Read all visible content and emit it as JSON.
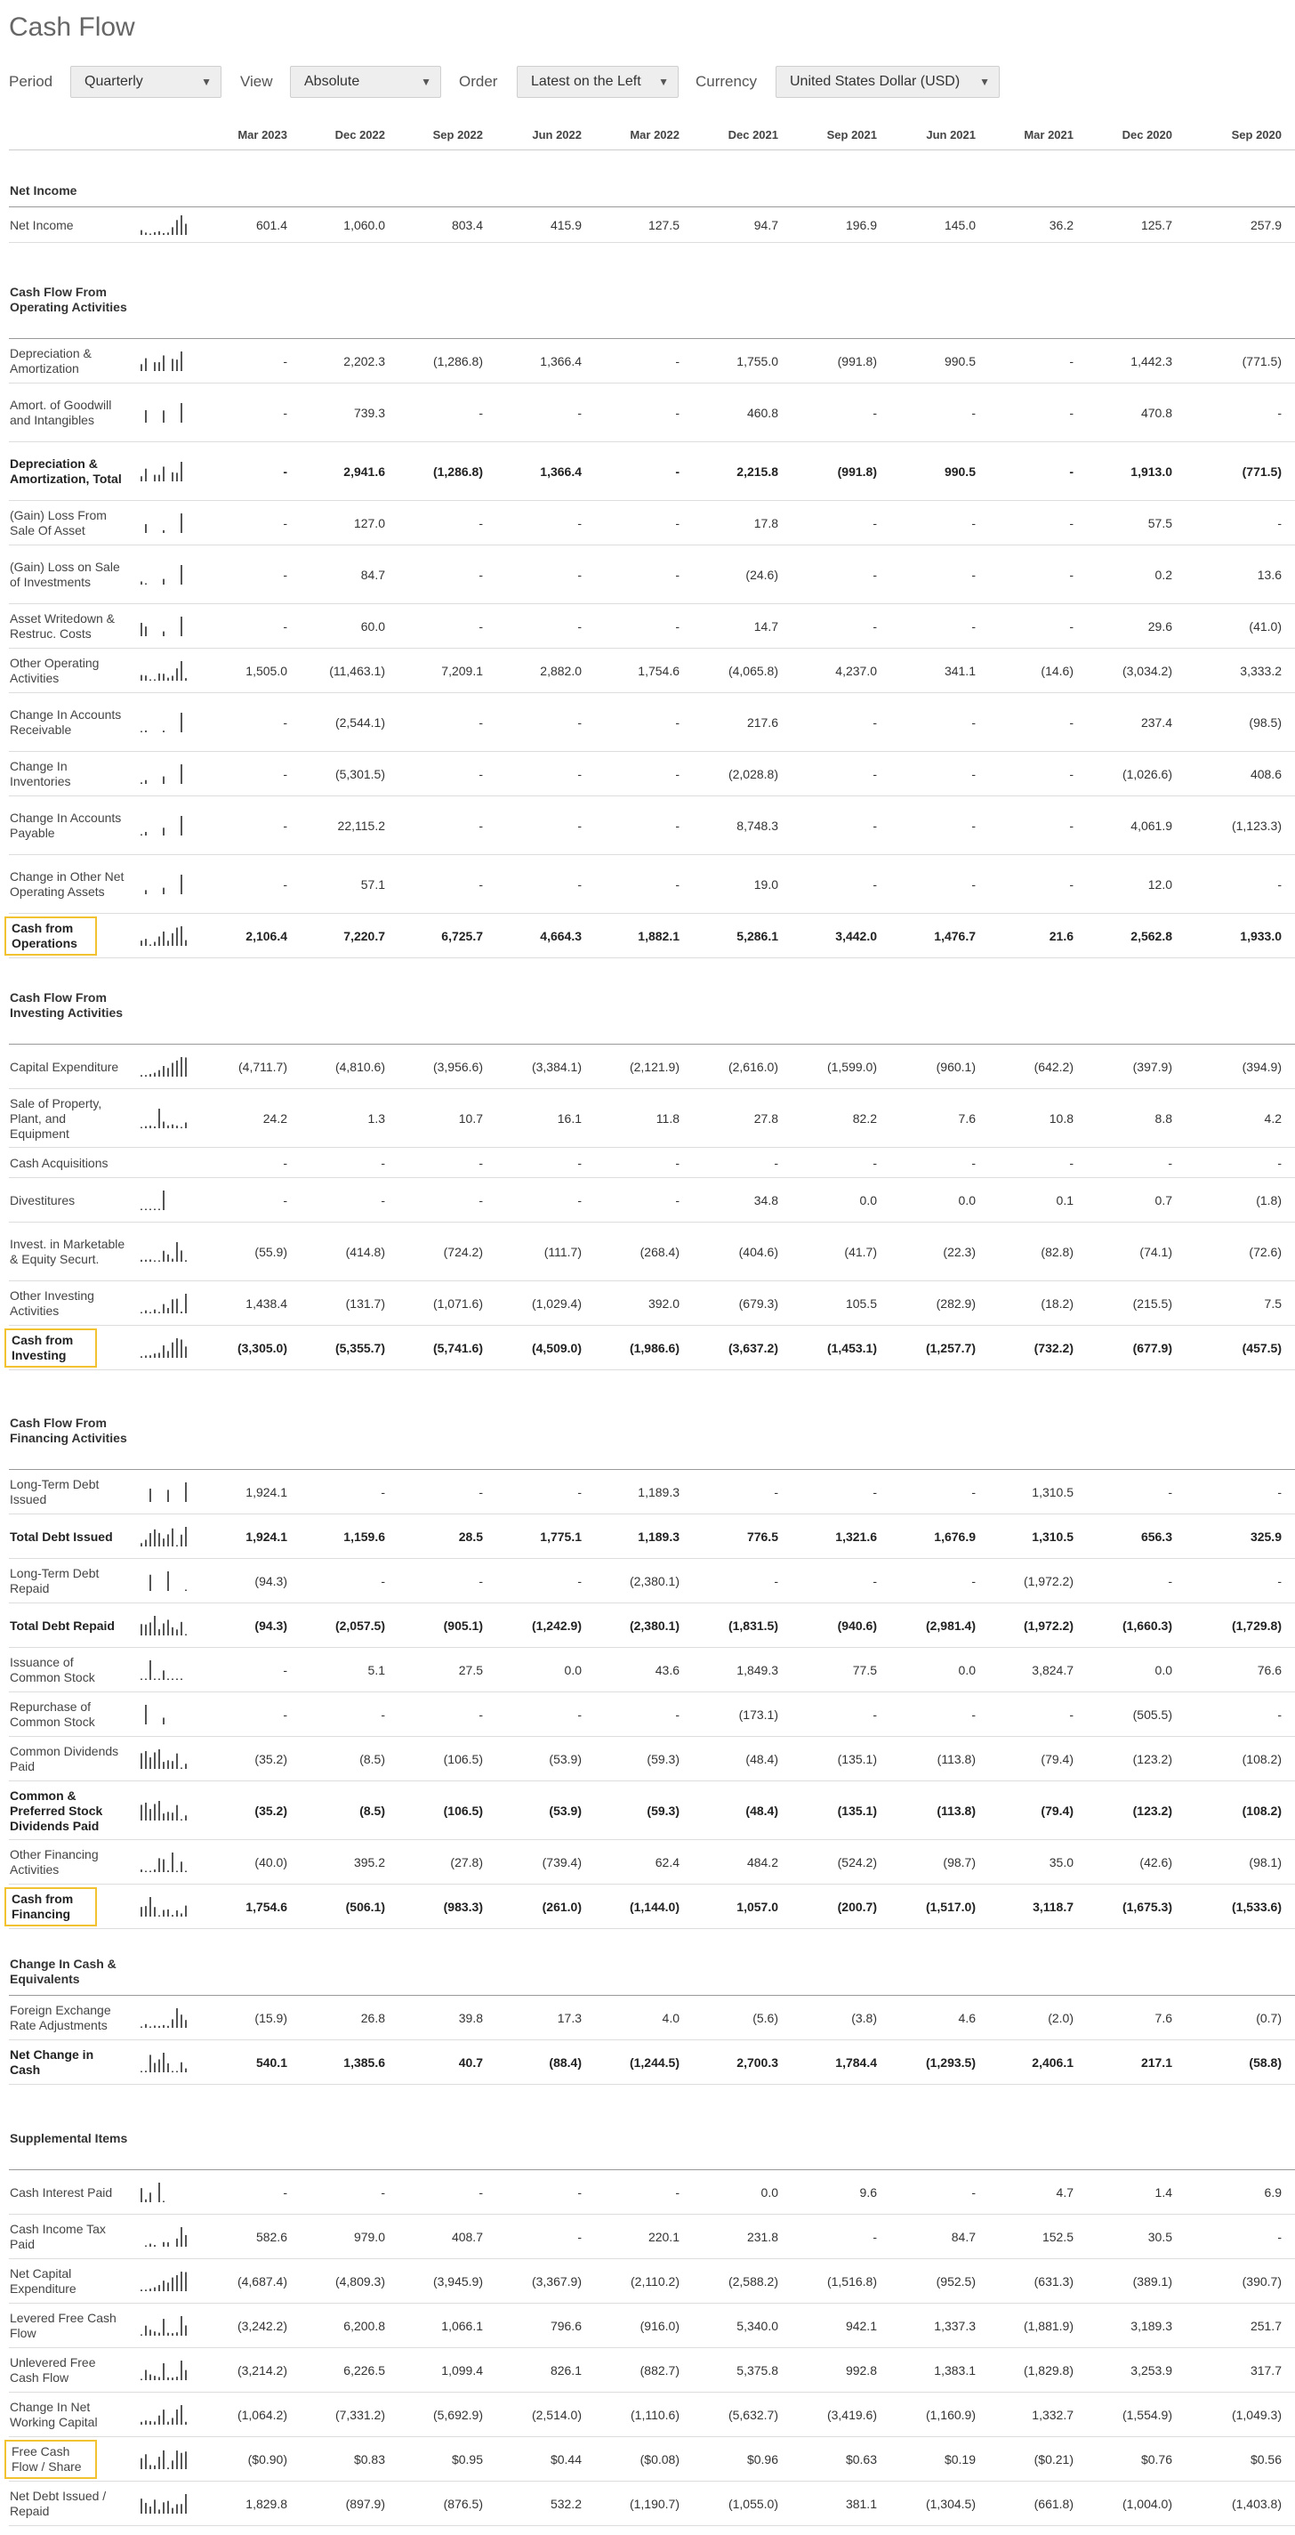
{
  "page": {
    "title": "Cash Flow"
  },
  "controls": {
    "period_label": "Period",
    "period_value": "Quarterly",
    "view_label": "View",
    "view_value": "Absolute",
    "order_label": "Order",
    "order_value": "Latest on the Left",
    "currency_label": "Currency",
    "currency_value": "United States Dollar (USD)"
  },
  "columns": [
    "Mar 2023",
    "Dec 2022",
    "Sep 2022",
    "Jun 2022",
    "Mar 2022",
    "Dec 2021",
    "Sep 2021",
    "Jun 2021",
    "Mar 2021",
    "Dec 2020",
    "Sep 2020"
  ],
  "colors": {
    "highlight_border": "#f2c230",
    "text": "#333333",
    "rule": "#dddddd"
  },
  "sections": [
    {
      "title": "Net Income",
      "rows": [
        {
          "label": "Net Income",
          "bold": false,
          "boxed": false,
          "values": [
            "601.4",
            "1,060.0",
            "803.4",
            "415.9",
            "127.5",
            "94.7",
            "196.9",
            "145.0",
            "36.2",
            "125.7",
            "257.9"
          ]
        }
      ]
    },
    {
      "title": "Cash Flow From Operating Activities",
      "rows": [
        {
          "label": "Depreciation & Amortization",
          "values": [
            "-",
            "2,202.3",
            "(1,286.8)",
            "1,366.4",
            "-",
            "1,755.0",
            "(991.8)",
            "990.5",
            "-",
            "1,442.3",
            "(771.5)"
          ]
        },
        {
          "label": "Amort. of Goodwill and Intangibles",
          "values": [
            "-",
            "739.3",
            "-",
            "-",
            "-",
            "460.8",
            "-",
            "-",
            "-",
            "470.8",
            "-"
          ]
        },
        {
          "label": "Depreciation & Amortization, Total",
          "bold": true,
          "values": [
            "-",
            "2,941.6",
            "(1,286.8)",
            "1,366.4",
            "-",
            "2,215.8",
            "(991.8)",
            "990.5",
            "-",
            "1,913.0",
            "(771.5)"
          ]
        },
        {
          "label": "(Gain) Loss From Sale Of Asset",
          "values": [
            "-",
            "127.0",
            "-",
            "-",
            "-",
            "17.8",
            "-",
            "-",
            "-",
            "57.5",
            "-"
          ]
        },
        {
          "label": "(Gain) Loss on Sale of Investments",
          "values": [
            "-",
            "84.7",
            "-",
            "-",
            "-",
            "(24.6)",
            "-",
            "-",
            "-",
            "0.2",
            "13.6"
          ]
        },
        {
          "label": "Asset Writedown & Restruc. Costs",
          "values": [
            "-",
            "60.0",
            "-",
            "-",
            "-",
            "14.7",
            "-",
            "-",
            "-",
            "29.6",
            "(41.0)"
          ]
        },
        {
          "label": "Other Operating Activities",
          "values": [
            "1,505.0",
            "(11,463.1)",
            "7,209.1",
            "2,882.0",
            "1,754.6",
            "(4,065.8)",
            "4,237.0",
            "341.1",
            "(14.6)",
            "(3,034.2)",
            "3,333.2"
          ]
        },
        {
          "label": "Change In Accounts Receivable",
          "values": [
            "-",
            "(2,544.1)",
            "-",
            "-",
            "-",
            "217.6",
            "-",
            "-",
            "-",
            "237.4",
            "(98.5)"
          ]
        },
        {
          "label": "Change In Inventories",
          "values": [
            "-",
            "(5,301.5)",
            "-",
            "-",
            "-",
            "(2,028.8)",
            "-",
            "-",
            "-",
            "(1,026.6)",
            "408.6"
          ]
        },
        {
          "label": "Change In Accounts Payable",
          "values": [
            "-",
            "22,115.2",
            "-",
            "-",
            "-",
            "8,748.3",
            "-",
            "-",
            "-",
            "4,061.9",
            "(1,123.3)"
          ]
        },
        {
          "label": "Change in Other Net Operating Assets",
          "values": [
            "-",
            "57.1",
            "-",
            "-",
            "-",
            "19.0",
            "-",
            "-",
            "-",
            "12.0",
            "-"
          ]
        },
        {
          "label": "Cash from Operations",
          "bold": true,
          "boxed": true,
          "values": [
            "2,106.4",
            "7,220.7",
            "6,725.7",
            "4,664.3",
            "1,882.1",
            "5,286.1",
            "3,442.0",
            "1,476.7",
            "21.6",
            "2,562.8",
            "1,933.0"
          ]
        }
      ]
    },
    {
      "title": "Cash Flow From Investing Activities",
      "rows": [
        {
          "label": "Capital Expenditure",
          "values": [
            "(4,711.7)",
            "(4,810.6)",
            "(3,956.6)",
            "(3,384.1)",
            "(2,121.9)",
            "(2,616.0)",
            "(1,599.0)",
            "(960.1)",
            "(642.2)",
            "(397.9)",
            "(394.9)"
          ]
        },
        {
          "label": "Sale of Property, Plant, and Equipment",
          "values": [
            "24.2",
            "1.3",
            "10.7",
            "16.1",
            "11.8",
            "27.8",
            "82.2",
            "7.6",
            "10.8",
            "8.8",
            "4.2"
          ]
        },
        {
          "label": "Cash Acquisitions",
          "values": [
            "-",
            "-",
            "-",
            "-",
            "-",
            "-",
            "-",
            "-",
            "-",
            "-",
            "-"
          ]
        },
        {
          "label": "Divestitures",
          "values": [
            "-",
            "-",
            "-",
            "-",
            "-",
            "34.8",
            "0.0",
            "0.0",
            "0.1",
            "0.7",
            "(1.8)"
          ]
        },
        {
          "label": "Invest. in Marketable & Equity Securt.",
          "values": [
            "(55.9)",
            "(414.8)",
            "(724.2)",
            "(111.7)",
            "(268.4)",
            "(404.6)",
            "(41.7)",
            "(22.3)",
            "(82.8)",
            "(74.1)",
            "(72.6)"
          ]
        },
        {
          "label": "Other Investing Activities",
          "values": [
            "1,438.4",
            "(131.7)",
            "(1,071.6)",
            "(1,029.4)",
            "392.0",
            "(679.3)",
            "105.5",
            "(282.9)",
            "(18.2)",
            "(215.5)",
            "7.5"
          ]
        },
        {
          "label": "Cash from Investing",
          "bold": true,
          "boxed": true,
          "values": [
            "(3,305.0)",
            "(5,355.7)",
            "(5,741.6)",
            "(4,509.0)",
            "(1,986.6)",
            "(3,637.2)",
            "(1,453.1)",
            "(1,257.7)",
            "(732.2)",
            "(677.9)",
            "(457.5)"
          ]
        }
      ]
    },
    {
      "title": "Cash Flow From Financing Activities",
      "rows": [
        {
          "label": "Long-Term Debt Issued",
          "values": [
            "1,924.1",
            "-",
            "-",
            "-",
            "1,189.3",
            "-",
            "-",
            "-",
            "1,310.5",
            "-",
            "-"
          ]
        },
        {
          "label": "Total Debt Issued",
          "bold": true,
          "values": [
            "1,924.1",
            "1,159.6",
            "28.5",
            "1,775.1",
            "1,189.3",
            "776.5",
            "1,321.6",
            "1,676.9",
            "1,310.5",
            "656.3",
            "325.9"
          ]
        },
        {
          "label": "Long-Term Debt Repaid",
          "values": [
            "(94.3)",
            "-",
            "-",
            "-",
            "(2,380.1)",
            "-",
            "-",
            "-",
            "(1,972.2)",
            "-",
            "-"
          ]
        },
        {
          "label": "Total Debt Repaid",
          "bold": true,
          "values": [
            "(94.3)",
            "(2,057.5)",
            "(905.1)",
            "(1,242.9)",
            "(2,380.1)",
            "(1,831.5)",
            "(940.6)",
            "(2,981.4)",
            "(1,972.2)",
            "(1,660.3)",
            "(1,729.8)"
          ]
        },
        {
          "label": "Issuance of Common Stock",
          "values": [
            "-",
            "5.1",
            "27.5",
            "0.0",
            "43.6",
            "1,849.3",
            "77.5",
            "0.0",
            "3,824.7",
            "0.0",
            "76.6"
          ]
        },
        {
          "label": "Repurchase of Common Stock",
          "values": [
            "-",
            "-",
            "-",
            "-",
            "-",
            "(173.1)",
            "-",
            "-",
            "-",
            "(505.5)",
            "-"
          ]
        },
        {
          "label": "Common Dividends Paid",
          "values": [
            "(35.2)",
            "(8.5)",
            "(106.5)",
            "(53.9)",
            "(59.3)",
            "(48.4)",
            "(135.1)",
            "(113.8)",
            "(79.4)",
            "(123.2)",
            "(108.2)"
          ]
        },
        {
          "label": "Common & Preferred Stock Dividends Paid",
          "bold": true,
          "values": [
            "(35.2)",
            "(8.5)",
            "(106.5)",
            "(53.9)",
            "(59.3)",
            "(48.4)",
            "(135.1)",
            "(113.8)",
            "(79.4)",
            "(123.2)",
            "(108.2)"
          ]
        },
        {
          "label": "Other Financing Activities",
          "values": [
            "(40.0)",
            "395.2",
            "(27.8)",
            "(739.4)",
            "62.4",
            "484.2",
            "(524.2)",
            "(98.7)",
            "35.0",
            "(42.6)",
            "(98.1)"
          ]
        },
        {
          "label": "Cash from Financing",
          "bold": true,
          "boxed": true,
          "values": [
            "1,754.6",
            "(506.1)",
            "(983.3)",
            "(261.0)",
            "(1,144.0)",
            "1,057.0",
            "(200.7)",
            "(1,517.0)",
            "3,118.7",
            "(1,675.3)",
            "(1,533.6)"
          ]
        }
      ]
    },
    {
      "title": "Change In Cash & Equivalents",
      "rows": [
        {
          "label": "Foreign Exchange Rate Adjustments",
          "values": [
            "(15.9)",
            "26.8",
            "39.8",
            "17.3",
            "4.0",
            "(5.6)",
            "(3.8)",
            "4.6",
            "(2.0)",
            "7.6",
            "(0.7)"
          ]
        },
        {
          "label": "Net Change in Cash",
          "bold": true,
          "values": [
            "540.1",
            "1,385.6",
            "40.7",
            "(88.4)",
            "(1,244.5)",
            "2,700.3",
            "1,784.4",
            "(1,293.5)",
            "2,406.1",
            "217.1",
            "(58.8)"
          ]
        }
      ]
    },
    {
      "title": "Supplemental Items",
      "rows": [
        {
          "label": "Cash Interest Paid",
          "values": [
            "-",
            "-",
            "-",
            "-",
            "-",
            "0.0",
            "9.6",
            "-",
            "4.7",
            "1.4",
            "6.9"
          ]
        },
        {
          "label": "Cash Income Tax Paid",
          "values": [
            "582.6",
            "979.0",
            "408.7",
            "-",
            "220.1",
            "231.8",
            "-",
            "84.7",
            "152.5",
            "30.5",
            "-"
          ]
        },
        {
          "label": "Net Capital Expenditure",
          "values": [
            "(4,687.4)",
            "(4,809.3)",
            "(3,945.9)",
            "(3,367.9)",
            "(2,110.2)",
            "(2,588.2)",
            "(1,516.8)",
            "(952.5)",
            "(631.3)",
            "(389.1)",
            "(390.7)"
          ]
        },
        {
          "label": "Levered Free Cash Flow",
          "values": [
            "(3,242.2)",
            "6,200.8",
            "1,066.1",
            "796.6",
            "(916.0)",
            "5,340.0",
            "942.1",
            "1,337.3",
            "(1,881.9)",
            "3,189.3",
            "251.7"
          ]
        },
        {
          "label": "Unlevered Free Cash Flow",
          "values": [
            "(3,214.2)",
            "6,226.5",
            "1,099.4",
            "826.1",
            "(882.7)",
            "5,375.8",
            "992.8",
            "1,383.1",
            "(1,829.8)",
            "3,253.9",
            "317.7"
          ]
        },
        {
          "label": "Change In Net Working Capital",
          "values": [
            "(1,064.2)",
            "(7,331.2)",
            "(5,692.9)",
            "(2,514.0)",
            "(1,110.6)",
            "(5,632.7)",
            "(3,419.6)",
            "(1,160.9)",
            "1,332.7",
            "(1,554.9)",
            "(1,049.3)"
          ]
        },
        {
          "label": "Free Cash Flow / Share",
          "boxed": true,
          "values": [
            "($0.90)",
            "$0.83",
            "$0.95",
            "$0.44",
            "($0.08)",
            "$0.96",
            "$0.63",
            "$0.19",
            "($0.21)",
            "$0.76",
            "$0.56"
          ]
        },
        {
          "label": "Net Debt Issued / Repaid",
          "values": [
            "1,829.8",
            "(897.9)",
            "(876.5)",
            "532.2",
            "(1,190.7)",
            "(1,055.0)",
            "381.1",
            "(1,304.5)",
            "(661.8)",
            "(1,004.0)",
            "(1,403.8)"
          ]
        }
      ]
    }
  ]
}
